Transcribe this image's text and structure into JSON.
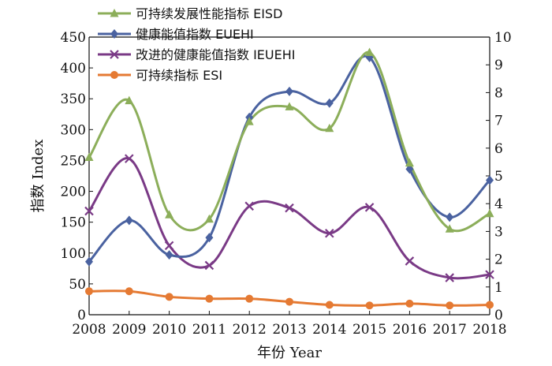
{
  "chart_data": {
    "type": "line",
    "title": "",
    "xlabel": "年份 Year",
    "ylabel": "指数 Index",
    "categories": [
      "2008",
      "2009",
      "2010",
      "2011",
      "2012",
      "2013",
      "2014",
      "2015",
      "2016",
      "2017",
      "2018"
    ],
    "y_left_lim": [
      0,
      450
    ],
    "y_left_ticks": [
      "0",
      "50",
      "100",
      "150",
      "200",
      "250",
      "300",
      "350",
      "400",
      "450"
    ],
    "y_right_lim": [
      0,
      10
    ],
    "y_right_ticks": [
      "0",
      "1",
      "2",
      "3",
      "4",
      "5",
      "6",
      "7",
      "8",
      "9",
      "10"
    ],
    "grid": false,
    "legend_position": "top-left",
    "series": [
      {
        "name": "可持续发展性能指标 EISD",
        "color": "#8CAE5A",
        "marker": "triangle",
        "axis": "left",
        "values": [
          255,
          347,
          162,
          155,
          313,
          337,
          302,
          425,
          246,
          139,
          164
        ]
      },
      {
        "name": "健康能值指数 EUEHI",
        "color": "#4A62A0",
        "marker": "diamond",
        "axis": "left",
        "values": [
          86,
          153,
          97,
          125,
          320,
          362,
          343,
          417,
          236,
          158,
          218
        ]
      },
      {
        "name": "改进的健康能值指数 IEUEHI",
        "color": "#7A3A86",
        "marker": "x",
        "axis": "left",
        "values": [
          168,
          253,
          112,
          80,
          176,
          173,
          132,
          174,
          87,
          60,
          65
        ]
      },
      {
        "name": "可持续指标 ESI",
        "color": "#E57A33",
        "marker": "circle",
        "axis": "left",
        "values": [
          38,
          38,
          29,
          26,
          26,
          21,
          16,
          15,
          18,
          15,
          16
        ]
      }
    ]
  }
}
